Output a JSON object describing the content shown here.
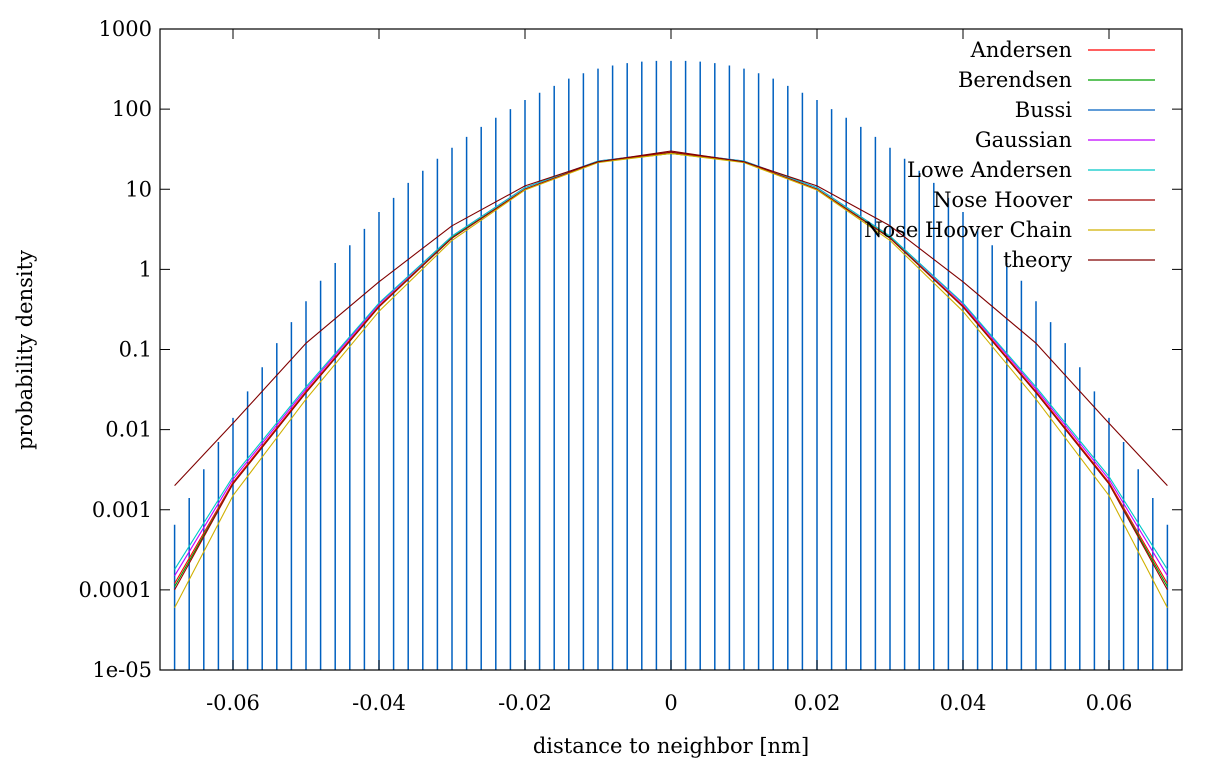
{
  "chart_data": {
    "type": "line",
    "title": "",
    "xlabel": "distance to neighbor [nm]",
    "ylabel": "probability density",
    "xlim": [
      -0.07,
      0.07
    ],
    "ylim": [
      1e-05,
      1000
    ],
    "y_scale": "log",
    "grid": false,
    "legend_position": "top-right",
    "x_ticks": [
      {
        "value": -0.06,
        "label": "-0.06"
      },
      {
        "value": -0.04,
        "label": "-0.04"
      },
      {
        "value": -0.02,
        "label": "-0.02"
      },
      {
        "value": 0,
        "label": "0"
      },
      {
        "value": 0.02,
        "label": "0.02"
      },
      {
        "value": 0.04,
        "label": "0.04"
      },
      {
        "value": 0.06,
        "label": "0.06"
      }
    ],
    "y_ticks": [
      {
        "value": 1e-05,
        "label": "1e-05"
      },
      {
        "value": 0.0001,
        "label": "0.0001"
      },
      {
        "value": 0.001,
        "label": "0.001"
      },
      {
        "value": 0.01,
        "label": "0.01"
      },
      {
        "value": 0.1,
        "label": "0.1"
      },
      {
        "value": 1,
        "label": "1"
      },
      {
        "value": 10,
        "label": "10"
      },
      {
        "value": 100,
        "label": "100"
      },
      {
        "value": 1000,
        "label": "1000"
      }
    ],
    "series": [
      {
        "name": "Andersen",
        "color": "#ff0000",
        "x": [
          -0.068,
          -0.06,
          -0.05,
          -0.04,
          -0.03,
          -0.02,
          -0.01,
          0,
          0.01,
          0.02,
          0.03,
          0.04,
          0.05,
          0.06,
          0.068
        ],
        "y": [
          0.00012,
          0.0022,
          0.03,
          0.35,
          2.5,
          10,
          22,
          28,
          22,
          10,
          2.5,
          0.35,
          0.03,
          0.0022,
          0.00012
        ]
      },
      {
        "name": "Berendsen",
        "color": "#00a000",
        "x": [
          -0.068,
          -0.06,
          -0.05,
          -0.04,
          -0.03,
          -0.02,
          -0.01,
          0,
          0.01,
          0.02,
          0.03,
          0.04,
          0.05,
          0.06,
          0.068
        ],
        "y": [
          0.00011,
          0.0021,
          0.029,
          0.34,
          2.5,
          10,
          22,
          28,
          22,
          10,
          2.5,
          0.34,
          0.029,
          0.0021,
          0.00011
        ]
      },
      {
        "name": "Bussi",
        "color": "#0060c0",
        "type": "bar",
        "x": [
          -0.068,
          -0.066,
          -0.064,
          -0.062,
          -0.06,
          -0.058,
          -0.056,
          -0.054,
          -0.052,
          -0.05,
          -0.048,
          -0.046,
          -0.044,
          -0.042,
          -0.04,
          -0.038,
          -0.036,
          -0.034,
          -0.032,
          -0.03,
          -0.028,
          -0.026,
          -0.024,
          -0.022,
          -0.02,
          -0.018,
          -0.016,
          -0.014,
          -0.012,
          -0.01,
          -0.008,
          -0.006,
          -0.004,
          -0.002,
          0,
          0.002,
          0.004,
          0.006,
          0.008,
          0.01,
          0.012,
          0.014,
          0.016,
          0.018,
          0.02,
          0.022,
          0.024,
          0.026,
          0.028,
          0.03,
          0.032,
          0.034,
          0.036,
          0.038,
          0.04,
          0.042,
          0.044,
          0.046,
          0.048,
          0.05,
          0.052,
          0.054,
          0.056,
          0.058,
          0.06,
          0.062,
          0.064,
          0.066,
          0.068
        ],
        "y": [
          0.00065,
          0.0014,
          0.0032,
          0.007,
          0.014,
          0.03,
          0.06,
          0.12,
          0.22,
          0.4,
          0.72,
          1.2,
          2,
          3.2,
          5.2,
          7.8,
          12,
          17,
          24,
          33,
          45,
          60,
          78,
          100,
          130,
          160,
          195,
          240,
          280,
          320,
          350,
          375,
          392,
          400,
          400,
          400,
          392,
          375,
          350,
          320,
          280,
          240,
          195,
          160,
          130,
          100,
          78,
          60,
          45,
          33,
          24,
          17,
          12,
          7.8,
          5.2,
          3.2,
          2,
          1.2,
          0.72,
          0.4,
          0.22,
          0.12,
          0.06,
          0.03,
          0.014,
          0.007,
          0.0032,
          0.0014,
          0.00065
        ]
      },
      {
        "name": "Gaussian",
        "color": "#c000ff",
        "x": [
          -0.068,
          -0.06,
          -0.05,
          -0.04,
          -0.03,
          -0.02,
          -0.01,
          0,
          0.01,
          0.02,
          0.03,
          0.04,
          0.05,
          0.06,
          0.068
        ],
        "y": [
          0.00015,
          0.0024,
          0.032,
          0.37,
          2.6,
          10.5,
          22.5,
          29,
          22.5,
          10.5,
          2.6,
          0.37,
          0.032,
          0.0024,
          0.00015
        ]
      },
      {
        "name": "Lowe Andersen",
        "color": "#00c8c8",
        "x": [
          -0.068,
          -0.06,
          -0.05,
          -0.04,
          -0.03,
          -0.02,
          -0.01,
          0,
          0.01,
          0.02,
          0.03,
          0.04,
          0.05,
          0.06,
          0.068
        ],
        "y": [
          0.00018,
          0.0026,
          0.034,
          0.38,
          2.6,
          10.5,
          22.5,
          29,
          22.5,
          10.5,
          2.6,
          0.38,
          0.034,
          0.0026,
          0.00018
        ]
      },
      {
        "name": "Nose Hoover",
        "color": "#a00000",
        "x": [
          -0.068,
          -0.06,
          -0.05,
          -0.04,
          -0.03,
          -0.02,
          -0.01,
          0,
          0.01,
          0.02,
          0.03,
          0.04,
          0.05,
          0.06,
          0.068
        ],
        "y": [
          0.0001,
          0.0021,
          0.029,
          0.34,
          2.45,
          10,
          22,
          29,
          22,
          10,
          2.45,
          0.34,
          0.029,
          0.0021,
          0.0001
        ]
      },
      {
        "name": "Nose Hoover Chain",
        "color": "#d0b000",
        "x": [
          -0.068,
          -0.06,
          -0.05,
          -0.04,
          -0.03,
          -0.02,
          -0.01,
          0,
          0.01,
          0.02,
          0.03,
          0.04,
          0.05,
          0.06,
          0.068
        ],
        "y": [
          6e-05,
          0.0015,
          0.024,
          0.3,
          2.3,
          9.8,
          21.5,
          28,
          21.5,
          9.8,
          2.3,
          0.3,
          0.024,
          0.0015,
          6e-05
        ]
      },
      {
        "name": "theory",
        "color": "#800000",
        "x": [
          -0.068,
          -0.06,
          -0.05,
          -0.04,
          -0.03,
          -0.02,
          -0.01,
          0,
          0.01,
          0.02,
          0.03,
          0.04,
          0.05,
          0.06,
          0.068
        ],
        "y": [
          0.002,
          0.012,
          0.12,
          0.7,
          3.5,
          11,
          22,
          30,
          22,
          11,
          3.5,
          0.7,
          0.12,
          0.012,
          0.002
        ]
      }
    ]
  }
}
